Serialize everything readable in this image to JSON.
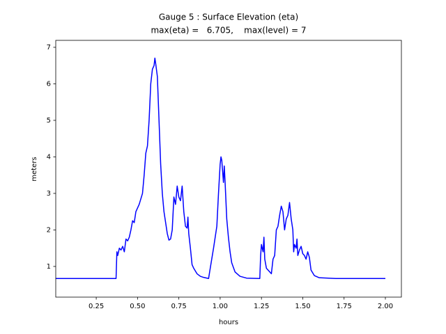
{
  "chart_data": {
    "type": "line",
    "title": "Gauge 5 : Surface Elevation (eta)",
    "subtitle": "max(eta) =   6.705,    max(level) = 7",
    "x_label": "hours",
    "y_label": "meters",
    "xlim": [
      0.005,
      2.097
    ],
    "ylim": [
      0.16,
      7.19
    ],
    "xticks": [
      0.25,
      {
        "value": 0.5,
        "label": "0.50"
      },
      0.75,
      {
        "value": 1,
        "label": "1.00"
      },
      1.25,
      {
        "value": 1.5,
        "label": "1.50"
      },
      1.75,
      {
        "value": 2,
        "label": "2.00"
      }
    ],
    "yticks": [
      1,
      2,
      3,
      4,
      5,
      6,
      7
    ],
    "grid": false,
    "x": [
      0.005,
      0.37,
      0.375,
      0.38,
      0.39,
      0.4,
      0.41,
      0.42,
      0.43,
      0.44,
      0.45,
      0.46,
      0.47,
      0.48,
      0.49,
      0.5,
      0.51,
      0.52,
      0.53,
      0.54,
      0.55,
      0.56,
      0.57,
      0.58,
      0.59,
      0.6,
      0.605,
      0.61,
      0.62,
      0.63,
      0.64,
      0.65,
      0.66,
      0.67,
      0.68,
      0.69,
      0.7,
      0.71,
      0.72,
      0.73,
      0.74,
      0.75,
      0.76,
      0.77,
      0.78,
      0.79,
      0.8,
      0.805,
      0.81,
      0.82,
      0.83,
      0.84,
      0.86,
      0.88,
      0.9,
      0.93,
      0.94,
      0.96,
      0.98,
      0.99,
      1.0,
      1.005,
      1.01,
      1.02,
      1.025,
      1.03,
      1.04,
      1.05,
      1.06,
      1.07,
      1.09,
      1.12,
      1.16,
      1.24,
      1.245,
      1.25,
      1.26,
      1.265,
      1.27,
      1.28,
      1.29,
      1.3,
      1.31,
      1.32,
      1.33,
      1.34,
      1.35,
      1.36,
      1.37,
      1.38,
      1.39,
      1.4,
      1.41,
      1.42,
      1.43,
      1.44,
      1.445,
      1.45,
      1.46,
      1.465,
      1.47,
      1.48,
      1.49,
      1.5,
      1.51,
      1.52,
      1.53,
      1.54,
      1.55,
      1.57,
      1.6,
      1.7,
      2.0
    ],
    "series": [
      {
        "name": "eta",
        "color": "#0000ff",
        "values": [
          0.67,
          0.67,
          1.4,
          1.3,
          1.5,
          1.45,
          1.55,
          1.4,
          1.75,
          1.7,
          1.8,
          2.0,
          2.25,
          2.2,
          2.5,
          2.6,
          2.7,
          2.85,
          3.0,
          3.5,
          4.1,
          4.3,
          5.0,
          6.0,
          6.4,
          6.5,
          6.705,
          6.55,
          6.2,
          5.0,
          3.8,
          3.0,
          2.5,
          2.2,
          1.9,
          1.72,
          1.75,
          2.0,
          2.9,
          2.7,
          3.2,
          2.9,
          2.8,
          3.2,
          2.5,
          2.1,
          2.05,
          2.35,
          1.9,
          1.5,
          1.05,
          0.95,
          0.8,
          0.73,
          0.7,
          0.67,
          0.95,
          1.5,
          2.1,
          3.0,
          3.8,
          4.0,
          3.9,
          3.3,
          3.75,
          3.3,
          2.3,
          1.8,
          1.4,
          1.1,
          0.85,
          0.73,
          0.68,
          0.67,
          1.3,
          1.6,
          1.4,
          1.8,
          1.2,
          0.95,
          0.9,
          0.85,
          0.8,
          1.2,
          1.3,
          2.0,
          2.1,
          2.4,
          2.65,
          2.5,
          2.0,
          2.3,
          2.4,
          2.75,
          2.3,
          2.0,
          1.4,
          1.6,
          1.5,
          1.75,
          1.3,
          1.45,
          1.55,
          1.35,
          1.3,
          1.2,
          1.4,
          1.25,
          0.9,
          0.75,
          0.69,
          0.67,
          0.67
        ]
      }
    ]
  }
}
